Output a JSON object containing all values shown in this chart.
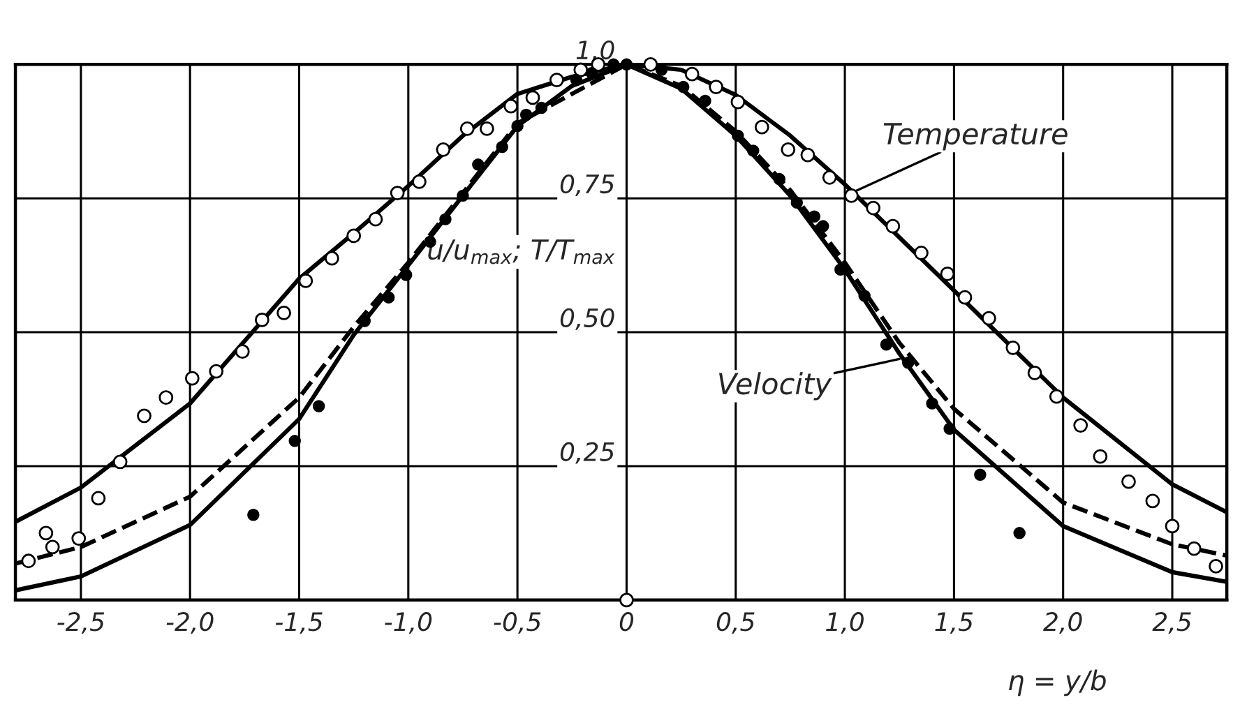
{
  "chart_data": {
    "type": "line",
    "xlabel": "η = y/b",
    "ylabel": "u/u$_{max}$; T/T$_{max}$",
    "xlim": [
      -2.8,
      2.75
    ],
    "ylim": [
      0,
      1.0
    ],
    "xticks": [
      {
        "value": -2.5,
        "label": "-2,5"
      },
      {
        "value": -2.0,
        "label": "-2,0"
      },
      {
        "value": -1.5,
        "label": "-1,5"
      },
      {
        "value": -1.0,
        "label": "-1,0"
      },
      {
        "value": -0.5,
        "label": "-0,5"
      },
      0,
      {
        "value": 0.5,
        "label": "0,5"
      },
      {
        "value": 1.0,
        "label": "1,0"
      },
      {
        "value": 1.5,
        "label": "1,5"
      },
      {
        "value": 2.0,
        "label": "2,0"
      },
      {
        "value": 2.5,
        "label": "2,5"
      }
    ],
    "yticks": [
      {
        "value": 0.25,
        "label": "0,25"
      },
      {
        "value": 0.5,
        "label": "0,50"
      },
      {
        "value": 0.75,
        "label": "0,75"
      },
      {
        "value": 1.0,
        "label": "1,0"
      }
    ],
    "grid": true,
    "annotations": [
      {
        "text": "Temperature",
        "x": 1.03,
        "y": 0.76
      },
      {
        "text": "Velocity",
        "x": 1.25,
        "y": 0.45
      }
    ],
    "series": [
      {
        "line_style": "solid",
        "marker": "none",
        "color": "#000000",
        "x": [
          -2.8,
          -2.5,
          -2.0,
          -1.5,
          -1.25,
          -1.0,
          -0.75,
          -0.5,
          -0.25,
          0,
          0.25,
          0.5,
          0.75,
          1.0,
          1.25,
          1.5,
          2.0,
          2.5,
          2.75
        ],
        "values": [
          0.146,
          0.21,
          0.367,
          0.6,
          0.685,
          0.773,
          0.867,
          0.945,
          0.977,
          1.0,
          0.99,
          0.943,
          0.867,
          0.776,
          0.677,
          0.578,
          0.378,
          0.216,
          0.164
        ]
      },
      {
        "line_style": "solid",
        "marker": "none",
        "color": "#000000",
        "x": [
          -2.8,
          -2.5,
          -2.0,
          -1.5,
          -1.25,
          -1.0,
          -0.75,
          -0.5,
          -0.25,
          0,
          0.25,
          0.5,
          0.75,
          1.0,
          1.25,
          1.5,
          2.0,
          2.5,
          2.75
        ],
        "values": [
          0.018,
          0.044,
          0.14,
          0.338,
          0.495,
          0.625,
          0.755,
          0.885,
          0.96,
          1.0,
          0.955,
          0.867,
          0.755,
          0.617,
          0.46,
          0.318,
          0.138,
          0.052,
          0.034
        ]
      },
      {
        "line_style": "dashed",
        "marker": "none",
        "color": "#000000",
        "x": [
          -2.8,
          -2.5,
          -2.0,
          -1.5,
          -1.25,
          -1.0,
          -0.75,
          -0.5,
          0,
          0.25,
          0.5,
          0.75,
          1.0,
          1.25,
          1.5,
          2.0,
          2.5,
          2.75
        ],
        "values": [
          0.068,
          0.099,
          0.193,
          0.378,
          0.51,
          0.63,
          0.76,
          0.89,
          1.0,
          0.96,
          0.875,
          0.765,
          0.63,
          0.48,
          0.357,
          0.182,
          0.104,
          0.083
        ]
      },
      {
        "type": "scatter",
        "marker": "circle",
        "color": "#ffffff",
        "x": [
          -2.74,
          -2.66,
          -2.63,
          -2.51,
          -2.42,
          -2.32,
          -2.21,
          -2.11,
          -1.99,
          -1.88,
          -1.76,
          -1.67,
          -1.57,
          -1.47,
          -1.35,
          -1.25,
          -1.15,
          -1.05,
          -0.95,
          -0.84,
          -0.73,
          -0.64,
          -0.53,
          -0.43,
          -0.32,
          -0.21,
          -0.13,
          0,
          0.11,
          0.3,
          0.41,
          0.51,
          0.62,
          0.74,
          0.83,
          0.93,
          1.03,
          1.13,
          1.22,
          1.35,
          1.47,
          1.55,
          1.66,
          1.77,
          1.87,
          1.97,
          2.08,
          2.17,
          2.3,
          2.41,
          2.5,
          2.6,
          2.7
        ],
        "values": [
          0.073,
          0.125,
          0.099,
          0.115,
          0.19,
          0.258,
          0.344,
          0.378,
          0.414,
          0.427,
          0.464,
          0.523,
          0.536,
          0.596,
          0.638,
          0.68,
          0.711,
          0.76,
          0.781,
          0.841,
          0.88,
          0.88,
          0.922,
          0.938,
          0.971,
          0.99,
          1.0,
          0,
          1.0,
          0.982,
          0.958,
          0.93,
          0.883,
          0.841,
          0.831,
          0.789,
          0.755,
          0.732,
          0.698,
          0.648,
          0.609,
          0.565,
          0.526,
          0.471,
          0.424,
          0.38,
          0.326,
          0.268,
          0.221,
          0.185,
          0.138,
          0.096,
          0.063
        ]
      },
      {
        "type": "scatter",
        "marker": "circle",
        "color": "#000000",
        "x": [
          -1.71,
          -1.52,
          -1.41,
          -1.2,
          -1.09,
          -1.01,
          -0.9,
          -0.83,
          -0.75,
          -0.68,
          -0.57,
          -0.5,
          -0.46,
          -0.39,
          -0.23,
          -0.16,
          -0.06,
          0.0,
          0.16,
          0.26,
          0.36,
          0.51,
          0.58,
          0.7,
          0.78,
          0.86,
          0.9,
          0.98,
          1.09,
          1.19,
          1.29,
          1.4,
          1.48,
          1.62,
          1.8
        ],
        "values": [
          0.159,
          0.297,
          0.362,
          0.521,
          0.565,
          0.607,
          0.669,
          0.711,
          0.755,
          0.813,
          0.846,
          0.885,
          0.906,
          0.919,
          0.971,
          0.984,
          1.0,
          1.0,
          0.99,
          0.958,
          0.932,
          0.867,
          0.839,
          0.786,
          0.742,
          0.716,
          0.698,
          0.617,
          0.568,
          0.477,
          0.443,
          0.367,
          0.32,
          0.234,
          0.125
        ]
      }
    ]
  }
}
